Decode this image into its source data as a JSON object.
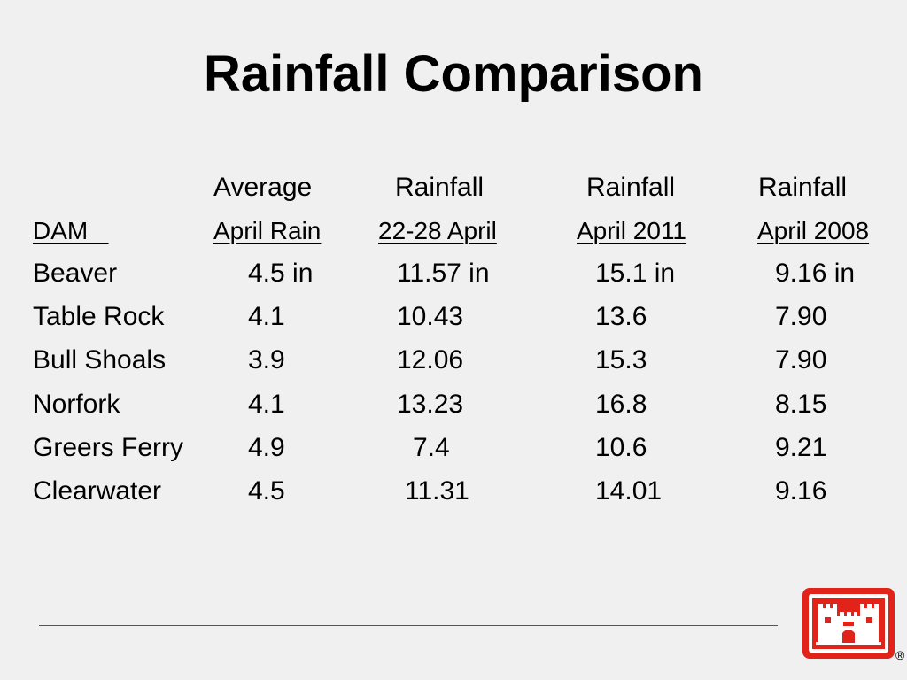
{
  "slide": {
    "title": "Rainfall Comparison"
  },
  "table": {
    "header_top": [
      "Average",
      "Rainfall",
      "Rainfall",
      "Rainfall"
    ],
    "header_sub": [
      "DAM   ",
      "April Rain",
      "22-28 April",
      "April 2011",
      "April 2008"
    ],
    "rows": [
      [
        "Beaver",
        "4.5 in",
        "11.57 in",
        "15.1 in",
        "9.16 in"
      ],
      [
        "Table Rock",
        "4.1",
        "10.43",
        "13.6",
        "7.90"
      ],
      [
        "Bull Shoals",
        "3.9",
        "12.06",
        "15.3",
        "7.90"
      ],
      [
        "Norfork",
        "4.1",
        "13.23",
        "16.8",
        "8.15"
      ],
      [
        "Greers Ferry",
        "4.9",
        "7.4",
        "10.6",
        "9.21"
      ],
      [
        "Clearwater",
        "4.5",
        "11.31",
        "14.01",
        "9.16"
      ]
    ]
  },
  "logo": {
    "icon": "castle-icon",
    "color": "#e2231a",
    "registered_mark": "®"
  }
}
